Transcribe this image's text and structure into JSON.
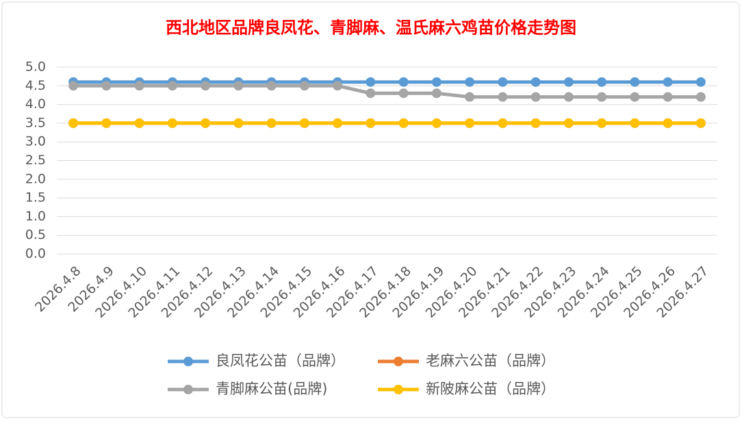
{
  "chart_data": {
    "type": "line",
    "title": "西北地区品牌良凤花、青脚麻、温氏麻六鸡苗价格走势图",
    "categories": [
      "2026.4.8",
      "2026.4.9",
      "2026.4.10",
      "2026.4.11",
      "2026.4.12",
      "2026.4.13",
      "2026.4.14",
      "2026.4.15",
      "2026.4.16",
      "2026.4.17",
      "2026.4.18",
      "2026.4.19",
      "2026.4.20",
      "2026.4.21",
      "2026.4.22",
      "2026.4.23",
      "2026.4.24",
      "2026.4.25",
      "2026.4.26",
      "2026.4.27"
    ],
    "series": [
      {
        "name": "良凤花公苗（品牌）",
        "color": "#5b9bd5",
        "values": [
          4.6,
          4.6,
          4.6,
          4.6,
          4.6,
          4.6,
          4.6,
          4.6,
          4.6,
          4.6,
          4.6,
          4.6,
          4.6,
          4.6,
          4.6,
          4.6,
          4.6,
          4.6,
          4.6,
          4.6
        ]
      },
      {
        "name": "老麻六公苗（品牌）",
        "color": "#ed7d31",
        "values": [
          3.5,
          3.5,
          3.5,
          3.5,
          3.5,
          3.5,
          3.5,
          3.5,
          3.5,
          3.5,
          3.5,
          3.5,
          3.5,
          3.5,
          3.5,
          3.5,
          3.5,
          3.5,
          3.5,
          3.5
        ]
      },
      {
        "name": "青脚麻公苗(品牌)",
        "color": "#a5a5a5",
        "values": [
          4.5,
          4.5,
          4.5,
          4.5,
          4.5,
          4.5,
          4.5,
          4.5,
          4.5,
          4.3,
          4.3,
          4.3,
          4.2,
          4.2,
          4.2,
          4.2,
          4.2,
          4.2,
          4.2,
          4.2
        ]
      },
      {
        "name": "新陂麻公苗（品牌）",
        "color": "#ffc000",
        "values": [
          3.5,
          3.5,
          3.5,
          3.5,
          3.5,
          3.5,
          3.5,
          3.5,
          3.5,
          3.5,
          3.5,
          3.5,
          3.5,
          3.5,
          3.5,
          3.5,
          3.5,
          3.5,
          3.5,
          3.5
        ]
      }
    ],
    "ylim": [
      0,
      5
    ],
    "yticks": [
      {
        "value": 0,
        "label": "0.0"
      },
      0.5,
      {
        "value": 1,
        "label": "1.0"
      },
      1.5,
      {
        "value": 2,
        "label": "2.0"
      },
      2.5,
      {
        "value": 3,
        "label": "3.0"
      },
      3.5,
      {
        "value": 4,
        "label": "4.0"
      },
      4.5,
      {
        "value": 5,
        "label": "5.0"
      }
    ],
    "grid": true
  }
}
